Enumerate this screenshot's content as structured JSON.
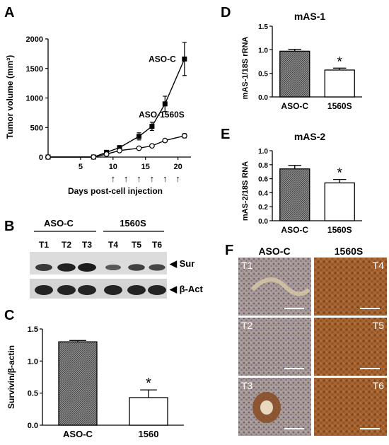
{
  "panel_letters": {
    "a": "A",
    "b": "B",
    "c": "C",
    "d": "D",
    "e": "E",
    "f": "F"
  },
  "panel_b": {
    "group_labels": [
      "ASO-C",
      "1560S"
    ],
    "lane_labels": [
      "T1",
      "T2",
      "T3",
      "T4",
      "T5",
      "T6"
    ],
    "band_labels": [
      "Sur",
      "β-Act"
    ],
    "sur_intensity": [
      0.75,
      0.95,
      1.0,
      0.5,
      0.7,
      0.65
    ],
    "act_intensity": [
      1,
      1,
      1,
      1,
      1,
      1
    ]
  },
  "panel_f": {
    "column_labels": [
      "ASO-C",
      "1560S"
    ],
    "tile_labels": [
      "T1",
      "T4",
      "T2",
      "T5",
      "T3",
      "T6"
    ]
  },
  "chart_data": [
    {
      "panel": "A",
      "type": "line",
      "xlabel": "Days post-cell injection",
      "ylabel": "Tumor volume (mm³)",
      "xlim": [
        0,
        22
      ],
      "ylim": [
        0,
        2000
      ],
      "xticks": [
        5,
        10,
        15,
        20
      ],
      "yticks": [
        0,
        500,
        1000,
        1500,
        2000
      ],
      "injection_days": [
        10,
        12,
        14,
        16,
        18,
        20
      ],
      "series": [
        {
          "name": "ASO-C",
          "marker": "filled-square",
          "x": [
            0,
            7,
            9,
            11,
            14,
            16,
            18,
            21
          ],
          "y": [
            0,
            0,
            80,
            160,
            350,
            520,
            900,
            1660
          ],
          "err": [
            0,
            0,
            0,
            20,
            60,
            70,
            130,
            280
          ]
        },
        {
          "name": "ASO-1560S",
          "marker": "open-circle",
          "x": [
            0,
            7,
            9,
            11,
            14,
            16,
            18,
            21
          ],
          "y": [
            0,
            0,
            50,
            110,
            150,
            190,
            280,
            360
          ],
          "err": [
            0,
            0,
            0,
            10,
            15,
            20,
            25,
            35
          ]
        }
      ]
    },
    {
      "panel": "C",
      "type": "bar",
      "ylabel": "Survivin/β-actin",
      "categories": [
        "ASO-C",
        "1560"
      ],
      "values": [
        1.3,
        0.43
      ],
      "err": [
        0.02,
        0.12
      ],
      "ylim": [
        0,
        1.5
      ],
      "yticks": [
        "0.0",
        "0.5",
        "1.0",
        "1.5"
      ],
      "significance": "*"
    },
    {
      "panel": "D",
      "type": "bar",
      "title": "mAS-1",
      "ylabel": "mAS-1/18S rRNA",
      "categories": [
        "ASO-C",
        "1560S"
      ],
      "values": [
        0.97,
        0.57
      ],
      "err": [
        0.04,
        0.04
      ],
      "ylim": [
        0,
        1.5
      ],
      "yticks": [
        "0.0",
        "0.5",
        "1.0",
        "1.5"
      ],
      "significance": "*"
    },
    {
      "panel": "E",
      "type": "bar",
      "title": "mAS-2",
      "ylabel": "mAS-2/18S RNA",
      "categories": [
        "ASO-C",
        "1560S"
      ],
      "values": [
        0.74,
        0.54
      ],
      "err": [
        0.05,
        0.05
      ],
      "ylim": [
        0,
        1.0
      ],
      "yticks": [
        "0.0",
        "0.2",
        "0.4",
        "0.6",
        "0.8",
        "1.0"
      ],
      "significance": "*"
    }
  ]
}
